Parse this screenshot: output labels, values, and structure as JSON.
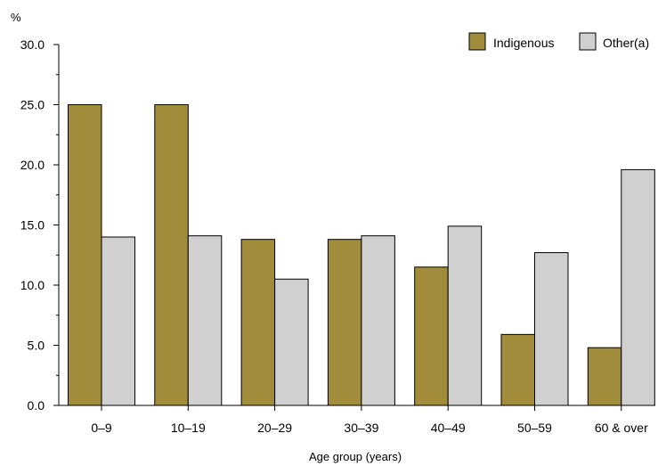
{
  "chart_data": {
    "type": "bar",
    "title": "",
    "ylabel": "%",
    "xlabel": "Age group (years)",
    "ylim": [
      0,
      30
    ],
    "yticks": [
      "0.0",
      "5.0",
      "10.0",
      "15.0",
      "20.0",
      "25.0",
      "30.0"
    ],
    "categories": [
      "0–9",
      "10–19",
      "20–29",
      "30–39",
      "40–49",
      "50–59",
      "60 & over"
    ],
    "series": [
      {
        "name": "Indigenous",
        "color": "#a08c3a",
        "values": [
          25.0,
          25.0,
          13.8,
          13.8,
          11.5,
          5.9,
          4.8
        ]
      },
      {
        "name": "Other(a)",
        "color": "#d0d0d0",
        "values": [
          14.0,
          14.1,
          10.5,
          14.1,
          14.9,
          12.7,
          19.6
        ]
      }
    ],
    "legend_position": "top-right",
    "grid": false
  }
}
